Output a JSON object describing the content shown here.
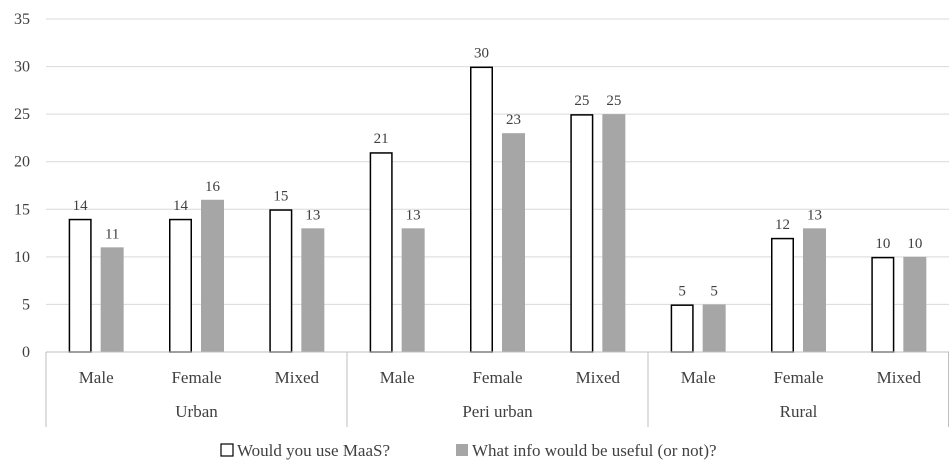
{
  "chart_data": {
    "type": "bar",
    "groups": [
      {
        "label": "Urban",
        "categories": [
          "Male",
          "Female",
          "Mixed"
        ]
      },
      {
        "label": "Peri urban",
        "categories": [
          "Male",
          "Female",
          "Mixed"
        ]
      },
      {
        "label": "Rural",
        "categories": [
          "Male",
          "Female",
          "Mixed"
        ]
      }
    ],
    "series": [
      {
        "name": "Would you use MaaS?",
        "color": "#ffffff",
        "stroke": "#000000",
        "values": [
          14,
          14,
          15,
          21,
          30,
          25,
          5,
          12,
          10
        ]
      },
      {
        "name": "What info would be useful (or not)?",
        "color": "#a6a6a6",
        "stroke": "none",
        "values": [
          11,
          16,
          13,
          13,
          23,
          25,
          5,
          13,
          10
        ]
      }
    ],
    "ylim": [
      0,
      35
    ],
    "yticks": [
      0,
      5,
      10,
      15,
      20,
      25,
      30,
      35
    ],
    "grid": true,
    "legend_position": "bottom",
    "data_labels": true
  },
  "colors": {
    "grid": "#d9d9d9",
    "axis": "#bfbfbf",
    "text": "#404040"
  }
}
